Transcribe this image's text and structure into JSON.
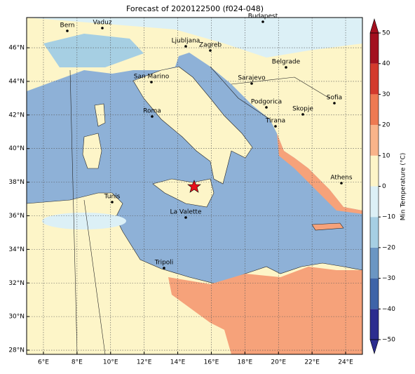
{
  "title": "Forecast of 2020122500 (f024-048)",
  "map": {
    "xlim": [
      5,
      25
    ],
    "ylim": [
      27.75,
      47.8
    ],
    "lon_ticks": [
      {
        "value": 6,
        "label": "6°E"
      },
      {
        "value": 8,
        "label": "8°E"
      },
      {
        "value": 10,
        "label": "10°E"
      },
      {
        "value": 12,
        "label": "12°E"
      },
      {
        "value": 14,
        "label": "14°E"
      },
      {
        "value": 16,
        "label": "16°E"
      },
      {
        "value": 18,
        "label": "18°E"
      },
      {
        "value": 20,
        "label": "20°E"
      },
      {
        "value": 22,
        "label": "22°E"
      },
      {
        "value": 24,
        "label": "24°E"
      }
    ],
    "lat_ticks": [
      {
        "value": 28,
        "label": "28°N"
      },
      {
        "value": 30,
        "label": "30°N"
      },
      {
        "value": 32,
        "label": "32°N"
      },
      {
        "value": 34,
        "label": "34°N"
      },
      {
        "value": 36,
        "label": "36°N"
      },
      {
        "value": 38,
        "label": "38°N"
      },
      {
        "value": 40,
        "label": "40°N"
      },
      {
        "value": 42,
        "label": "42°N"
      },
      {
        "value": 44,
        "label": "44°N"
      },
      {
        "value": 46,
        "label": "46°N"
      }
    ],
    "cities": [
      "Bern",
      "Vaduz",
      "Budapest",
      "Ljubljana",
      "Zagreb",
      "Belgrade",
      "San Marino",
      "Sarajevo",
      "Sofia",
      "Podgorica",
      "Skopje",
      "Roma",
      "Tirana",
      "Athens",
      "Tunis",
      "La Valette",
      "Tripoli"
    ]
  },
  "colorbar": {
    "label": "Min Temperature (°C)",
    "lim": [
      -50,
      50
    ],
    "ticks": [
      {
        "value": -50,
        "label": "−50"
      },
      {
        "value": -40,
        "label": "−40"
      },
      {
        "value": -30,
        "label": "−30"
      },
      {
        "value": -20,
        "label": "−20"
      },
      {
        "value": -10,
        "label": "−10"
      },
      0,
      10,
      20,
      30,
      40,
      50
    ],
    "colors": [
      "#2c2d8f",
      "#3e64a8",
      "#6b96c3",
      "#a6cfe3",
      "#dcf0f6",
      "#fdf5c8",
      "#f9b48a",
      "#ee7a52",
      "#d33a2d",
      "#a3101f"
    ]
  }
}
